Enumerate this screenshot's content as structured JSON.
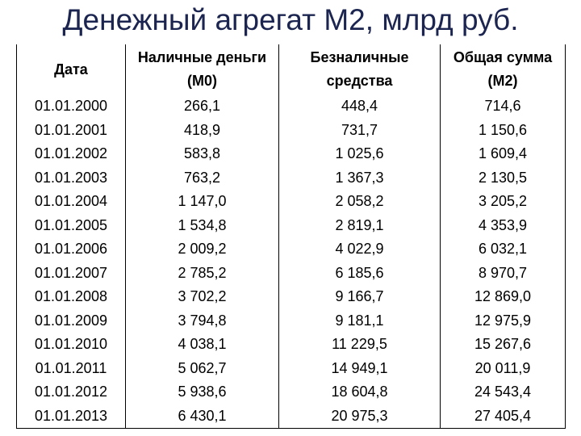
{
  "header": {
    "title": "Денежный агрегат М2, млрд руб."
  },
  "table": {
    "columns": [
      [
        "Дата"
      ],
      [
        "Наличные деньги",
        "(М0)"
      ],
      [
        "Безналичные",
        "средства"
      ],
      [
        "Общая сумма",
        "(М2)"
      ]
    ],
    "rows": [
      [
        "01.01.2000",
        "266,1",
        "448,4",
        "714,6"
      ],
      [
        "01.01.2001",
        "418,9",
        "731,7",
        "1 150,6"
      ],
      [
        "01.01.2002",
        "583,8",
        "1 025,6",
        "1 609,4"
      ],
      [
        "01.01.2003",
        "763,2",
        "1 367,3",
        "2 130,5"
      ],
      [
        "01.01.2004",
        "1 147,0",
        "2 058,2",
        "3 205,2"
      ],
      [
        "01.01.2005",
        "1 534,8",
        "2 819,1",
        "4 353,9"
      ],
      [
        "01.01.2006",
        "2 009,2",
        "4 022,9",
        "6 032,1"
      ],
      [
        "01.01.2007",
        "2 785,2",
        "6 185,6",
        "8 970,7"
      ],
      [
        "01.01.2008",
        "3 702,2",
        "9 166,7",
        "12 869,0"
      ],
      [
        "01.01.2009",
        "3 794,8",
        "9 181,1",
        "12 975,9"
      ],
      [
        "01.01.2010",
        "4 038,1",
        "11 229,5",
        "15 267,6"
      ],
      [
        "01.01.2011",
        "5 062,7",
        "14 949,1",
        "20 011,9"
      ],
      [
        "01.01.2012",
        "5 938,6",
        "18 604,8",
        "24 543,4"
      ],
      [
        "01.01.2013",
        "6 430,1",
        "20 975,3",
        "27 405,4"
      ]
    ]
  }
}
